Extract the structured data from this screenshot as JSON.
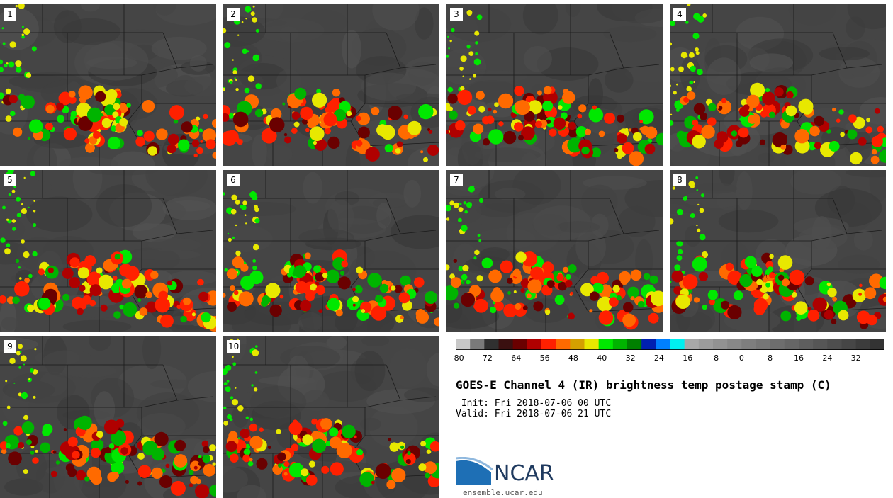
{
  "panels": [
    {
      "label": "1"
    },
    {
      "label": "2"
    },
    {
      "label": "3"
    },
    {
      "label": "4"
    },
    {
      "label": "5"
    },
    {
      "label": "6"
    },
    {
      "label": "7"
    },
    {
      "label": "8"
    },
    {
      "label": "9"
    },
    {
      "label": "10"
    }
  ],
  "colorbar": {
    "tick_labels": [
      "-80",
      "-72",
      "-64",
      "-56",
      "-48",
      "-40",
      "-32",
      "-24",
      "-16",
      "-8",
      "0",
      "8",
      "16",
      "24",
      "32"
    ],
    "tick_values": [
      -80,
      -72,
      -64,
      -56,
      -48,
      -40,
      -32,
      -24,
      -16,
      -8,
      0,
      8,
      16,
      24,
      32
    ],
    "range": [
      -80,
      40
    ],
    "bin_width": 4,
    "bin_colors": [
      "#c8c8c8",
      "#7a7a7a",
      "#303030",
      "#3a1010",
      "#6a0000",
      "#b00000",
      "#ff2000",
      "#ff6a00",
      "#d4a000",
      "#e8e800",
      "#00e800",
      "#00b400",
      "#008000",
      "#0020b0",
      "#0080ff",
      "#00f0f0",
      "#a8a8a8",
      "#9c9c9c",
      "#929292",
      "#888888",
      "#7e7e7e",
      "#767676",
      "#6e6e6e",
      "#666666",
      "#5e5e5e",
      "#565656",
      "#4e4e4e",
      "#464646",
      "#3c3c3c",
      "#333333"
    ]
  },
  "title": "GOES-E Channel 4 (IR) brightness temp postage stamp (C)",
  "init_line": " Init: Fri 2018-07-06 00 UTC",
  "valid_line": "Valid: Fri 2018-07-06 21 UTC",
  "logo": {
    "text": "NCAR",
    "url": "ensemble.ucar.edu"
  },
  "colors": {
    "map_background": "#454545",
    "borders": "#1a1a1a",
    "logo_blue": "#1f3a5f"
  }
}
